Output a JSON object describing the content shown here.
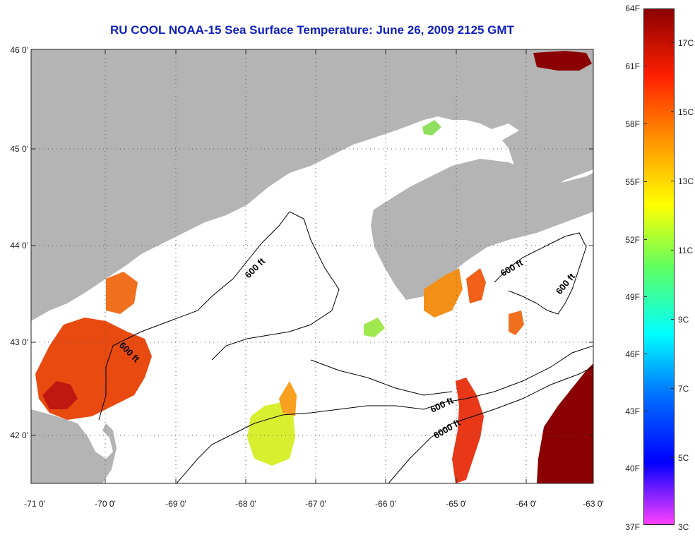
{
  "title": "RU COOL  NOAA-15  Sea Surface Temperature:  June 26, 2009 2125 GMT",
  "map": {
    "lon_range": [
      -71,
      -63
    ],
    "lat_range": [
      41.5,
      46
    ],
    "lat_ticks": [
      {
        "value": 46,
        "label": "46 0'"
      },
      {
        "value": 45,
        "label": "45 0'"
      },
      {
        "value": 44,
        "label": "44 0'"
      },
      {
        "value": 43,
        "label": "43 0'"
      },
      {
        "value": 42,
        "label": "42 0'"
      }
    ],
    "lon_ticks": [
      {
        "value": -71,
        "label": "-71 0'"
      },
      {
        "value": -70,
        "label": "-70 0'"
      },
      {
        "value": -69,
        "label": "-69 0'"
      },
      {
        "value": -68,
        "label": "-68 0'"
      },
      {
        "value": -67,
        "label": "-67 0'"
      },
      {
        "value": -66,
        "label": "-66 0'"
      },
      {
        "value": -65,
        "label": "-65 0'"
      },
      {
        "value": -64,
        "label": "-64 0'"
      },
      {
        "value": -63,
        "label": "-63 0'"
      }
    ],
    "grid": "dotted",
    "land_color": "#b4b4b4",
    "cloud_color": "#ffffff",
    "contour_labels": [
      {
        "text": "600 ft"
      },
      {
        "text": "600 ft"
      },
      {
        "text": "600 ft"
      },
      {
        "text": "600 ft"
      },
      {
        "text": "600 ft"
      },
      {
        "text": "6000 ft"
      }
    ]
  },
  "colorbar": {
    "fahrenheit_labels": [
      "64F",
      "61F",
      "58F",
      "55F",
      "52F",
      "49F",
      "46F",
      "43F",
      "40F",
      "37F"
    ],
    "celsius_labels": [
      "17C",
      "15C",
      "13C",
      "11C",
      "9C",
      "7C",
      "5C",
      "3C"
    ],
    "colors": [
      "#8b0000",
      "#ff2000",
      "#ff9000",
      "#ffff00",
      "#60ff60",
      "#00ffff",
      "#0070ff",
      "#0000ff",
      "#ff40ff"
    ]
  }
}
